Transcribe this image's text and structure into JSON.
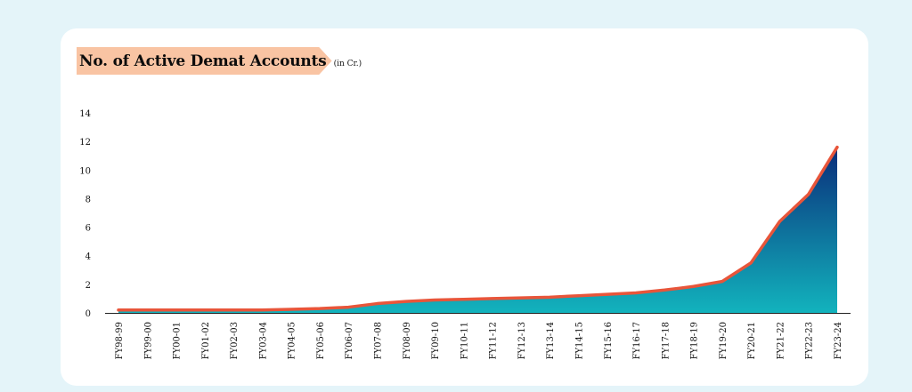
{
  "chart_data": {
    "type": "area",
    "title": "No. of Active Demat Accounts",
    "subtitle": "(in Cr.)",
    "xlabel": "",
    "ylabel": "",
    "ylim": [
      0,
      14
    ],
    "yticks": [
      0,
      2,
      4,
      6,
      8,
      10,
      12,
      14
    ],
    "grid": false,
    "categories": [
      "FY98-99",
      "FY99-00",
      "FY00-01",
      "FY01-02",
      "FY02-03",
      "FY03-04",
      "FY04-05",
      "FY05-06",
      "FY06-07",
      "FY07-08",
      "FY08-09",
      "FY09-10",
      "FY10-11",
      "FY11-12",
      "FY12-13",
      "FY13-14",
      "FY14-15",
      "FY15-16",
      "FY16-17",
      "FY17-18",
      "FY18-19",
      "FY19-20",
      "FY20-21",
      "FY21-22",
      "FY22-23",
      "FY23-24"
    ],
    "values": [
      0.2,
      0.2,
      0.2,
      0.2,
      0.2,
      0.2,
      0.25,
      0.3,
      0.4,
      0.65,
      0.8,
      0.9,
      0.95,
      1.0,
      1.05,
      1.1,
      1.2,
      1.3,
      1.4,
      1.6,
      1.85,
      2.2,
      3.5,
      6.4,
      8.3,
      11.6
    ],
    "colors": {
      "line": "#e8553a",
      "fill_top": "#0a2d7a",
      "fill_bottom": "#12b3bd"
    }
  }
}
